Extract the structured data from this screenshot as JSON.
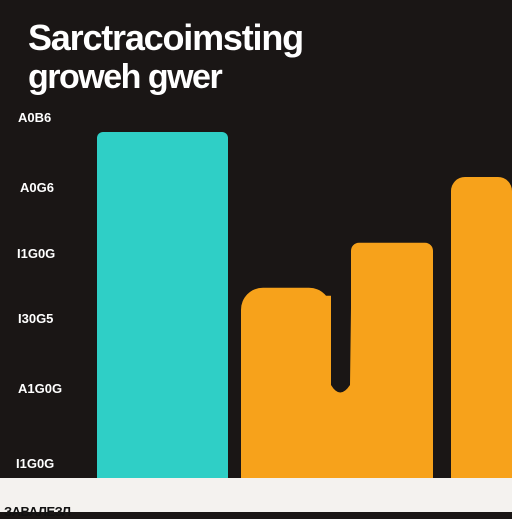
{
  "colors": {
    "background": "#1a1615",
    "bar_primary": "#2fcfc6",
    "bar_secondary": "#f7a21b",
    "text": "#ffffff"
  },
  "chart_data": {
    "type": "bar",
    "title": "Sarctracoimsting",
    "subtitle": "groweh gwer",
    "xlabel": "",
    "ylabel": "",
    "y_tick_labels": [
      "A0B6",
      "A0G6",
      "I1G0G",
      "I30G5",
      "A1G0G",
      "I1G0G"
    ],
    "ylim": [
      0,
      100
    ],
    "grid": false,
    "legend": "none",
    "series": [
      {
        "color": "#2fcfc6",
        "points": [
          {
            "x": 1,
            "y": 100
          }
        ]
      },
      {
        "color": "#f7a21b",
        "points": [
          {
            "x": 2,
            "y": 55
          },
          {
            "x": 3,
            "y": 68
          },
          {
            "x": 4,
            "y": 87
          }
        ]
      }
    ]
  },
  "footer": {
    "text": "ЗАВАЛЕЗЛ"
  }
}
